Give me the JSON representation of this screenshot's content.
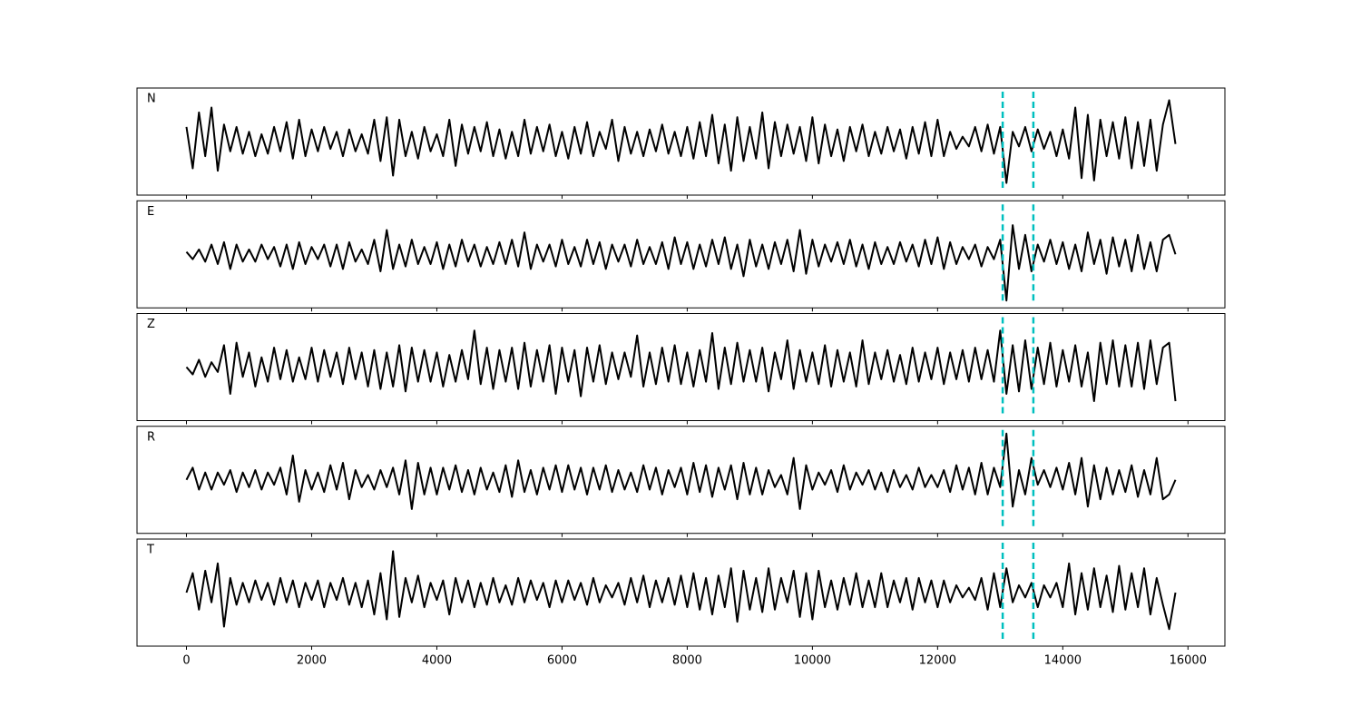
{
  "chart_data": {
    "type": "line",
    "layout": "stacked",
    "grid": false,
    "xlim": [
      -790,
      16590
    ],
    "ylim": [
      -1.1,
      1.1
    ],
    "xticks": [
      0,
      2000,
      4000,
      6000,
      8000,
      10000,
      12000,
      14000,
      16000
    ],
    "vlines": [
      13040,
      13530
    ],
    "vline_color": "#00bfbf",
    "x": [
      0,
      100,
      200,
      300,
      400,
      500,
      600,
      700,
      800,
      900,
      1000,
      1100,
      1200,
      1300,
      1400,
      1500,
      1600,
      1700,
      1800,
      1900,
      2000,
      2100,
      2200,
      2300,
      2400,
      2500,
      2600,
      2700,
      2800,
      2900,
      3000,
      3100,
      3200,
      3300,
      3400,
      3500,
      3600,
      3700,
      3800,
      3900,
      4000,
      4100,
      4200,
      4300,
      4400,
      4500,
      4600,
      4700,
      4800,
      4900,
      5000,
      5100,
      5200,
      5300,
      5400,
      5500,
      5600,
      5700,
      5800,
      5900,
      6000,
      6100,
      6200,
      6300,
      6400,
      6500,
      6600,
      6700,
      6800,
      6900,
      7000,
      7100,
      7200,
      7300,
      7400,
      7500,
      7600,
      7700,
      7800,
      7900,
      8000,
      8100,
      8200,
      8300,
      8400,
      8500,
      8600,
      8700,
      8800,
      8900,
      9000,
      9100,
      9200,
      9300,
      9400,
      9500,
      9600,
      9700,
      9800,
      9900,
      10000,
      10100,
      10200,
      10300,
      10400,
      10500,
      10600,
      10700,
      10800,
      10900,
      11000,
      11100,
      11200,
      11300,
      11400,
      11500,
      11600,
      11700,
      11800,
      11900,
      12000,
      12100,
      12200,
      12300,
      12400,
      12500,
      12600,
      12700,
      12800,
      12900,
      13000,
      13100,
      13200,
      13300,
      13400,
      13500,
      13600,
      13700,
      13800,
      13900,
      14000,
      14100,
      14200,
      14300,
      14400,
      14500,
      14600,
      14700,
      14800,
      14900,
      15000,
      15100,
      15200,
      15300,
      15400,
      15500,
      15600,
      15700,
      15800
    ],
    "series": [
      {
        "name": "N",
        "color": "#000000",
        "values": [
          0.3,
          -0.55,
          0.6,
          -0.3,
          0.7,
          -0.6,
          0.35,
          -0.2,
          0.3,
          -0.25,
          0.2,
          -0.3,
          0.15,
          -0.25,
          0.3,
          -0.2,
          0.4,
          -0.35,
          0.45,
          -0.3,
          0.25,
          -0.2,
          0.3,
          -0.15,
          0.2,
          -0.3,
          0.25,
          -0.2,
          0.15,
          -0.25,
          0.45,
          -0.4,
          0.5,
          -0.7,
          0.45,
          -0.3,
          0.2,
          -0.35,
          0.3,
          -0.2,
          0.15,
          -0.3,
          0.45,
          -0.5,
          0.35,
          -0.25,
          0.3,
          -0.2,
          0.4,
          -0.3,
          0.25,
          -0.35,
          0.2,
          -0.3,
          0.45,
          -0.25,
          0.3,
          -0.2,
          0.35,
          -0.3,
          0.2,
          -0.35,
          0.3,
          -0.25,
          0.4,
          -0.3,
          0.2,
          -0.15,
          0.45,
          -0.4,
          0.3,
          -0.25,
          0.2,
          -0.3,
          0.25,
          -0.2,
          0.35,
          -0.25,
          0.2,
          -0.3,
          0.3,
          -0.35,
          0.4,
          -0.3,
          0.55,
          -0.45,
          0.35,
          -0.6,
          0.5,
          -0.4,
          0.3,
          -0.35,
          0.6,
          -0.55,
          0.4,
          -0.3,
          0.35,
          -0.25,
          0.3,
          -0.4,
          0.5,
          -0.45,
          0.35,
          -0.3,
          0.25,
          -0.4,
          0.3,
          -0.2,
          0.35,
          -0.3,
          0.2,
          -0.25,
          0.3,
          -0.2,
          0.25,
          -0.35,
          0.3,
          -0.25,
          0.4,
          -0.3,
          0.45,
          -0.3,
          0.2,
          -0.15,
          0.1,
          -0.1,
          0.3,
          -0.2,
          0.35,
          -0.25,
          0.3,
          -0.85,
          0.2,
          -0.1,
          0.3,
          -0.2,
          0.25,
          -0.15,
          0.2,
          -0.3,
          0.25,
          -0.35,
          0.7,
          -0.75,
          0.55,
          -0.8,
          0.45,
          -0.3,
          0.4,
          -0.35,
          0.5,
          -0.55,
          0.4,
          -0.5,
          0.45,
          -0.6,
          0.35,
          0.85,
          -0.05
        ]
      },
      {
        "name": "E",
        "color": "#000000",
        "values": [
          0.05,
          -0.1,
          0.1,
          -0.15,
          0.2,
          -0.2,
          0.25,
          -0.3,
          0.2,
          -0.15,
          0.1,
          -0.15,
          0.2,
          -0.1,
          0.15,
          -0.25,
          0.2,
          -0.3,
          0.25,
          -0.2,
          0.15,
          -0.1,
          0.2,
          -0.25,
          0.2,
          -0.3,
          0.25,
          -0.15,
          0.1,
          -0.2,
          0.3,
          -0.35,
          0.5,
          -0.3,
          0.2,
          -0.25,
          0.3,
          -0.2,
          0.15,
          -0.2,
          0.25,
          -0.3,
          0.2,
          -0.25,
          0.3,
          -0.15,
          0.2,
          -0.25,
          0.15,
          -0.2,
          0.25,
          -0.2,
          0.3,
          -0.25,
          0.45,
          -0.3,
          0.2,
          -0.15,
          0.2,
          -0.25,
          0.3,
          -0.2,
          0.15,
          -0.25,
          0.3,
          -0.2,
          0.25,
          -0.3,
          0.2,
          -0.15,
          0.2,
          -0.25,
          0.3,
          -0.2,
          0.15,
          -0.2,
          0.25,
          -0.3,
          0.35,
          -0.2,
          0.25,
          -0.3,
          0.2,
          -0.25,
          0.3,
          -0.2,
          0.35,
          -0.3,
          0.2,
          -0.45,
          0.3,
          -0.25,
          0.2,
          -0.3,
          0.25,
          -0.2,
          0.3,
          -0.35,
          0.5,
          -0.4,
          0.3,
          -0.25,
          0.2,
          -0.15,
          0.25,
          -0.2,
          0.3,
          -0.25,
          0.2,
          -0.3,
          0.25,
          -0.2,
          0.15,
          -0.2,
          0.25,
          -0.15,
          0.2,
          -0.25,
          0.3,
          -0.2,
          0.35,
          -0.3,
          0.25,
          -0.2,
          0.15,
          -0.1,
          0.2,
          -0.25,
          0.15,
          -0.1,
          0.3,
          -0.95,
          0.6,
          -0.3,
          0.4,
          -0.35,
          0.2,
          -0.15,
          0.3,
          -0.2,
          0.25,
          -0.3,
          0.2,
          -0.35,
          0.45,
          -0.2,
          0.3,
          -0.4,
          0.35,
          -0.25,
          0.3,
          -0.35,
          0.4,
          -0.3,
          0.25,
          -0.35,
          0.3,
          0.4,
          0.0
        ]
      },
      {
        "name": "Z",
        "color": "#000000",
        "values": [
          0.0,
          -0.15,
          0.15,
          -0.2,
          0.1,
          -0.1,
          0.45,
          -0.55,
          0.5,
          -0.2,
          0.3,
          -0.4,
          0.2,
          -0.3,
          0.4,
          -0.25,
          0.35,
          -0.3,
          0.2,
          -0.25,
          0.4,
          -0.3,
          0.35,
          -0.2,
          0.3,
          -0.35,
          0.4,
          -0.25,
          0.3,
          -0.4,
          0.35,
          -0.45,
          0.3,
          -0.4,
          0.45,
          -0.5,
          0.4,
          -0.3,
          0.35,
          -0.3,
          0.3,
          -0.4,
          0.25,
          -0.3,
          0.35,
          -0.25,
          0.75,
          -0.35,
          0.4,
          -0.45,
          0.35,
          -0.3,
          0.4,
          -0.45,
          0.5,
          -0.4,
          0.35,
          -0.3,
          0.45,
          -0.55,
          0.4,
          -0.3,
          0.35,
          -0.6,
          0.4,
          -0.3,
          0.45,
          -0.35,
          0.3,
          -0.25,
          0.3,
          -0.2,
          0.65,
          -0.4,
          0.3,
          -0.35,
          0.4,
          -0.3,
          0.45,
          -0.35,
          0.3,
          -0.4,
          0.35,
          -0.3,
          0.7,
          -0.45,
          0.4,
          -0.35,
          0.5,
          -0.3,
          0.35,
          -0.3,
          0.4,
          -0.5,
          0.3,
          -0.25,
          0.55,
          -0.45,
          0.35,
          -0.3,
          0.3,
          -0.35,
          0.45,
          -0.4,
          0.35,
          -0.3,
          0.3,
          -0.4,
          0.55,
          -0.35,
          0.3,
          -0.25,
          0.35,
          -0.3,
          0.25,
          -0.35,
          0.4,
          -0.3,
          0.3,
          -0.25,
          0.4,
          -0.35,
          0.3,
          -0.25,
          0.35,
          -0.3,
          0.4,
          -0.25,
          0.35,
          -0.3,
          0.75,
          -0.55,
          0.45,
          -0.5,
          0.55,
          -0.45,
          0.4,
          -0.35,
          0.5,
          -0.4,
          0.35,
          -0.3,
          0.45,
          -0.4,
          0.3,
          -0.7,
          0.5,
          -0.35,
          0.55,
          -0.4,
          0.45,
          -0.4,
          0.5,
          -0.45,
          0.55,
          -0.35,
          0.4,
          0.5,
          -0.7
        ]
      },
      {
        "name": "R",
        "color": "#000000",
        "values": [
          0.0,
          0.25,
          -0.2,
          0.15,
          -0.2,
          0.15,
          -0.1,
          0.2,
          -0.25,
          0.15,
          -0.15,
          0.2,
          -0.2,
          0.15,
          -0.1,
          0.25,
          -0.3,
          0.5,
          -0.45,
          0.2,
          -0.2,
          0.15,
          -0.25,
          0.3,
          -0.2,
          0.35,
          -0.4,
          0.2,
          -0.15,
          0.1,
          -0.2,
          0.2,
          -0.15,
          0.25,
          -0.3,
          0.4,
          -0.6,
          0.35,
          -0.3,
          0.25,
          -0.3,
          0.25,
          -0.2,
          0.3,
          -0.25,
          0.2,
          -0.3,
          0.25,
          -0.2,
          0.15,
          -0.25,
          0.3,
          -0.35,
          0.4,
          -0.25,
          0.2,
          -0.3,
          0.25,
          -0.2,
          0.3,
          -0.25,
          0.3,
          -0.2,
          0.25,
          -0.3,
          0.25,
          -0.2,
          0.3,
          -0.25,
          0.2,
          -0.2,
          0.15,
          -0.25,
          0.3,
          -0.2,
          0.25,
          -0.3,
          0.2,
          -0.15,
          0.25,
          -0.3,
          0.35,
          -0.25,
          0.3,
          -0.35,
          0.25,
          -0.2,
          0.3,
          -0.4,
          0.35,
          -0.3,
          0.25,
          -0.3,
          0.2,
          -0.15,
          0.1,
          -0.3,
          0.45,
          -0.6,
          0.3,
          -0.2,
          0.15,
          -0.1,
          0.2,
          -0.25,
          0.3,
          -0.2,
          0.15,
          -0.1,
          0.2,
          -0.2,
          0.15,
          -0.25,
          0.2,
          -0.15,
          0.1,
          -0.2,
          0.25,
          -0.15,
          0.1,
          -0.15,
          0.2,
          -0.25,
          0.3,
          -0.2,
          0.25,
          -0.3,
          0.35,
          -0.3,
          0.25,
          -0.15,
          0.95,
          -0.55,
          0.2,
          -0.3,
          0.45,
          -0.1,
          0.2,
          -0.15,
          0.25,
          -0.2,
          0.35,
          -0.3,
          0.45,
          -0.55,
          0.3,
          -0.4,
          0.25,
          -0.3,
          0.2,
          -0.25,
          0.3,
          -0.35,
          0.2,
          -0.3,
          0.45,
          -0.4,
          -0.3,
          0.0
        ]
      },
      {
        "name": "T",
        "color": "#000000",
        "values": [
          0.0,
          0.4,
          -0.35,
          0.45,
          -0.2,
          0.6,
          -0.7,
          0.3,
          -0.25,
          0.2,
          -0.2,
          0.25,
          -0.15,
          0.2,
          -0.25,
          0.3,
          -0.2,
          0.25,
          -0.3,
          0.2,
          -0.15,
          0.25,
          -0.3,
          0.2,
          -0.15,
          0.3,
          -0.25,
          0.2,
          -0.3,
          0.25,
          -0.45,
          0.4,
          -0.55,
          0.85,
          -0.5,
          0.3,
          -0.2,
          0.35,
          -0.3,
          0.2,
          -0.15,
          0.25,
          -0.45,
          0.3,
          -0.2,
          0.25,
          -0.3,
          0.2,
          -0.25,
          0.3,
          -0.2,
          0.15,
          -0.25,
          0.3,
          -0.2,
          0.25,
          -0.15,
          0.2,
          -0.3,
          0.25,
          -0.2,
          0.25,
          -0.15,
          0.2,
          -0.25,
          0.3,
          -0.2,
          0.15,
          -0.1,
          0.2,
          -0.25,
          0.3,
          -0.2,
          0.35,
          -0.3,
          0.25,
          -0.2,
          0.3,
          -0.25,
          0.35,
          -0.3,
          0.4,
          -0.35,
          0.3,
          -0.45,
          0.35,
          -0.3,
          0.5,
          -0.6,
          0.45,
          -0.35,
          0.3,
          -0.4,
          0.5,
          -0.35,
          0.3,
          -0.2,
          0.45,
          -0.5,
          0.4,
          -0.55,
          0.45,
          -0.3,
          0.25,
          -0.35,
          0.3,
          -0.25,
          0.4,
          -0.3,
          0.25,
          -0.3,
          0.4,
          -0.3,
          0.25,
          -0.2,
          0.3,
          -0.35,
          0.3,
          -0.2,
          0.25,
          -0.3,
          0.25,
          -0.2,
          0.15,
          -0.1,
          0.1,
          -0.15,
          0.3,
          -0.35,
          0.4,
          -0.3,
          0.5,
          -0.2,
          0.15,
          -0.1,
          0.2,
          -0.3,
          0.15,
          -0.1,
          0.2,
          -0.3,
          0.6,
          -0.45,
          0.4,
          -0.35,
          0.5,
          -0.3,
          0.35,
          -0.4,
          0.55,
          -0.35,
          0.4,
          -0.3,
          0.5,
          -0.45,
          0.3,
          -0.25,
          -0.75,
          0.0
        ]
      }
    ]
  }
}
